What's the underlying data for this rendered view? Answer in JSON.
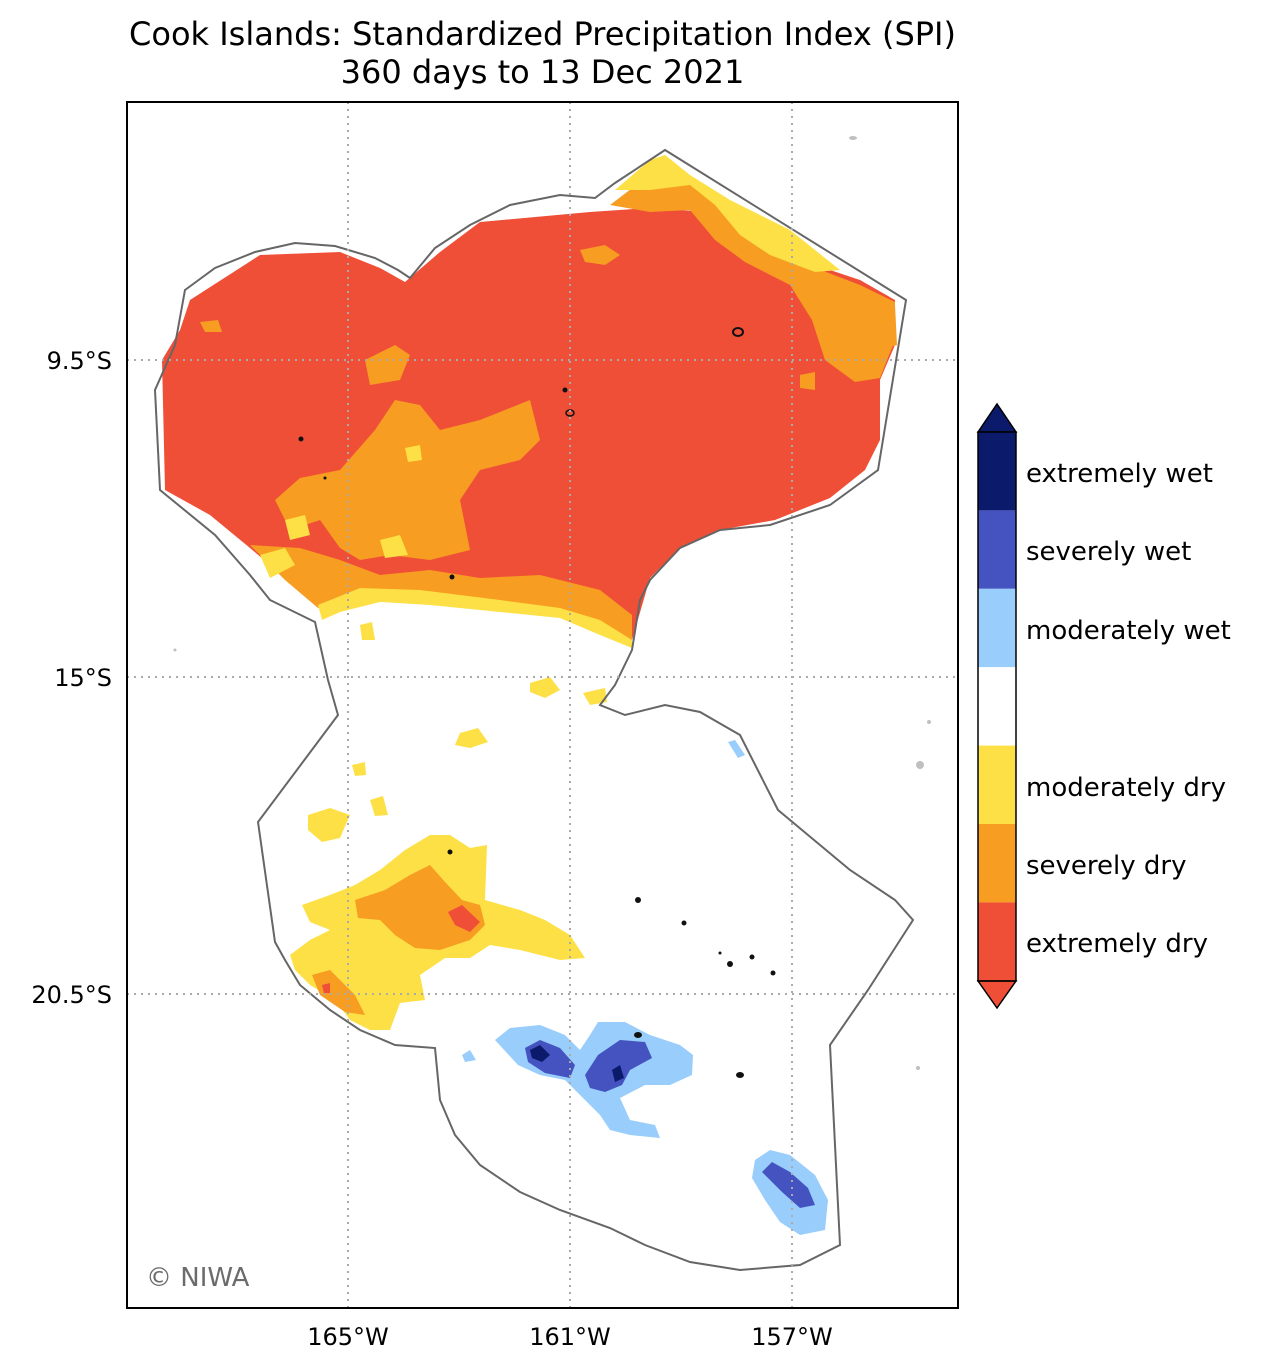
{
  "title": "Cook Islands: Standardized Precipitation Index (SPI)",
  "subtitle": "360 days to 13 Dec 2021",
  "axes": {
    "lat_ticks": [
      "9.5°S",
      "15°S",
      "20.5°S"
    ],
    "lon_ticks": [
      "165°W",
      "161°W",
      "157°W"
    ],
    "gridlines": "dotted"
  },
  "colorbar": {
    "classes": [
      {
        "label": "extremely wet",
        "color": "#0b1a6b"
      },
      {
        "label": "severely wet",
        "color": "#4453c0"
      },
      {
        "label": "moderately wet",
        "color": "#99cdfc"
      },
      {
        "label": "",
        "color": "#ffffff"
      },
      {
        "label": "moderately dry",
        "color": "#fde045"
      },
      {
        "label": "severely dry",
        "color": "#f79d22"
      },
      {
        "label": "extremely dry",
        "color": "#ef4f37"
      }
    ],
    "extends": "both"
  },
  "credit": "© NIWA",
  "colors": {
    "extremely_dry": "#ef4f37",
    "severely_dry": "#f79d22",
    "moderately_dry": "#fde045",
    "moderately_wet": "#99cdfc",
    "severely_wet": "#4453c0",
    "extremely_wet": "#0b1a6b",
    "eez_outline": "#666666"
  }
}
